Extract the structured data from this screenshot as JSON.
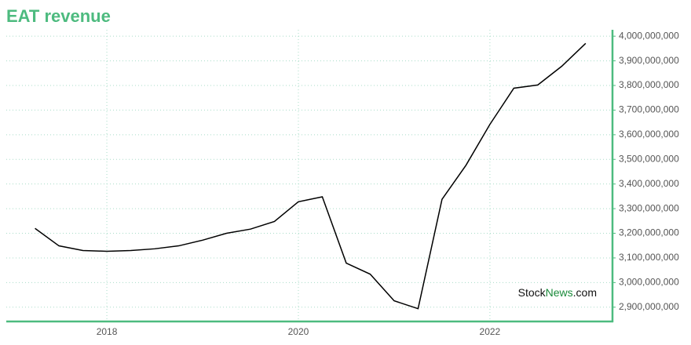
{
  "chart_data": {
    "type": "line",
    "title": "EAT revenue",
    "x": [
      2017.25,
      2017.5,
      2017.75,
      2018.0,
      2018.25,
      2018.5,
      2018.75,
      2019.0,
      2019.25,
      2019.5,
      2019.75,
      2020.0,
      2020.25,
      2020.5,
      2020.75,
      2021.0,
      2021.25,
      2021.5,
      2021.75,
      2022.0,
      2022.25,
      2022.5,
      2022.75,
      2023.0
    ],
    "series": [
      {
        "color": "#000000",
        "values": [
          3220000000,
          3149000000,
          3130000000,
          3127000000,
          3130000000,
          3137000000,
          3149000000,
          3172000000,
          3200000000,
          3217000000,
          3248000000,
          3328000000,
          3348000000,
          3079000000,
          3034000000,
          2926000000,
          2894000000,
          3338000000,
          3476000000,
          3642000000,
          3789000000,
          3802000000,
          3878000000,
          3971000000
        ]
      }
    ],
    "xlim": [
      2016.95,
      2023.28
    ],
    "xticks": [
      2018,
      2020,
      2022
    ],
    "ylim": [
      2842000000,
      4026000000
    ],
    "yticks": [
      {
        "value": 2900000000,
        "label": "2,900,000,000"
      },
      {
        "value": 3000000000,
        "label": "3,000,000,000"
      },
      {
        "value": 3100000000,
        "label": "3,100,000,000"
      },
      {
        "value": 3200000000,
        "label": "3,200,000,000"
      },
      {
        "value": 3300000000,
        "label": "3,300,000,000"
      },
      {
        "value": 3400000000,
        "label": "3,400,000,000"
      },
      {
        "value": 3500000000,
        "label": "3,500,000,000"
      },
      {
        "value": 3600000000,
        "label": "3,600,000,000"
      },
      {
        "value": 3700000000,
        "label": "3,700,000,000"
      },
      {
        "value": 3800000000,
        "label": "3,800,000,000"
      },
      {
        "value": 3900000000,
        "label": "3,900,000,000"
      },
      {
        "value": 4000000000,
        "label": "4,000,000,000"
      }
    ],
    "grid": true,
    "watermark_parts": [
      "Stock",
      "News",
      ".com"
    ]
  }
}
